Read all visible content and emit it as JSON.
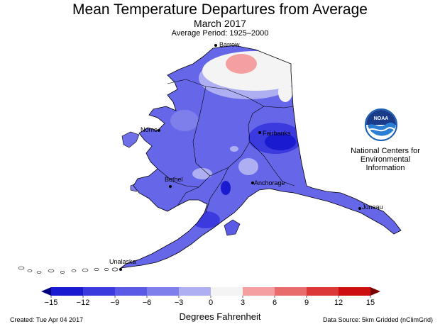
{
  "header": {
    "title": "Mean Temperature Departures from Average",
    "subtitle": "March 2017",
    "period": "Average Period: 1925–2000"
  },
  "cities": [
    {
      "id": "barrow",
      "name": "Barrow"
    },
    {
      "id": "nome",
      "name": "Nome"
    },
    {
      "id": "fairbanks",
      "name": "Fairbanks"
    },
    {
      "id": "bethel",
      "name": "Bethel"
    },
    {
      "id": "anchorage",
      "name": "Anchorage"
    },
    {
      "id": "juneau",
      "name": "Juneau"
    },
    {
      "id": "unalaska",
      "name": "Unalaska"
    }
  ],
  "agency": {
    "logo_text": "NOAA",
    "lines": [
      "National Centers for",
      "Environmental",
      "Information"
    ]
  },
  "legend": {
    "ticks": [
      "−15",
      "−12",
      "−9",
      "−6",
      "−3",
      "0",
      "3",
      "6",
      "9",
      "12",
      "15"
    ],
    "unit": "Degrees Fahrenheit",
    "colors": [
      "#1a1ad0",
      "#3a3ade",
      "#5a5ae6",
      "#7f7fec",
      "#aeaef2",
      "#f4f4f4",
      "#f4a0a0",
      "#e86c6c",
      "#dc3838",
      "#cc1010"
    ],
    "low_extend_color": "#000080",
    "high_extend_color": "#7a0000"
  },
  "footer": {
    "created": "Created: Tue Apr 04 2017",
    "source": "Data Source: 5km Gridded (nClimGrid)"
  }
}
